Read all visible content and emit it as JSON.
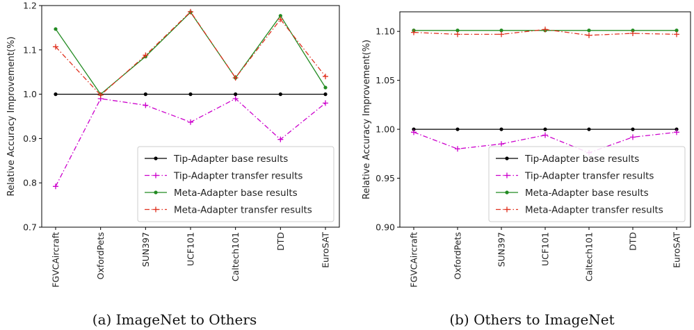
{
  "chart_data": [
    {
      "type": "line",
      "caption": "(a)  ImageNet to Others",
      "ylabel": "Relative Accuracy Improvement(%)",
      "categories": [
        "FGVCAircraft",
        "OxfordPets",
        "SUN397",
        "UCF101",
        "Caltech101",
        "DTD",
        "EuroSAT"
      ],
      "ylim": [
        0.7,
        1.2
      ],
      "yticks": [
        "0.7",
        "0.8",
        "0.9",
        "1.0",
        "1.1",
        "1.2"
      ],
      "ytick_values": [
        0.7,
        0.8,
        0.9,
        1.0,
        1.1,
        1.2
      ],
      "legend_position": "lower-right",
      "series": [
        {
          "name": "Tip-Adapter base results",
          "color": "#000000",
          "marker": "dot",
          "dash": "solid",
          "values": [
            1.0,
            1.0,
            1.0,
            1.0,
            1.0,
            1.0,
            1.0
          ]
        },
        {
          "name": "Tip-Adapter transfer results",
          "color": "#cc00cc",
          "marker": "plus",
          "dash": "dashdot",
          "values": [
            0.792,
            0.99,
            0.975,
            0.937,
            0.99,
            0.898,
            0.98
          ]
        },
        {
          "name": "Meta-Adapter base results",
          "color": "#228b22",
          "marker": "dot",
          "dash": "solid",
          "values": [
            1.147,
            1.0,
            1.085,
            1.185,
            1.037,
            1.177,
            1.015
          ]
        },
        {
          "name": "Meta-Adapter transfer results",
          "color": "#e0301e",
          "marker": "plus",
          "dash": "dashdot",
          "values": [
            1.107,
            0.998,
            1.088,
            1.186,
            1.037,
            1.169,
            1.04
          ]
        }
      ]
    },
    {
      "type": "line",
      "caption": "(b)  Others to ImageNet",
      "ylabel": "Relative Accuracy Improvement(%)",
      "categories": [
        "FGVCAircraft",
        "OxfordPets",
        "SUN397",
        "UCF101",
        "Caltech101",
        "DTD",
        "EuroSAT"
      ],
      "ylim": [
        0.9,
        1.12
      ],
      "yticks": [
        "0.90",
        "0.95",
        "1.00",
        "1.05",
        "1.10"
      ],
      "ytick_values": [
        0.9,
        0.95,
        1.0,
        1.05,
        1.1
      ],
      "legend_position": "lower-right",
      "series": [
        {
          "name": "Tip-Adapter base results",
          "color": "#000000",
          "marker": "dot",
          "dash": "solid",
          "values": [
            1.0,
            1.0,
            1.0,
            1.0,
            1.0,
            1.0,
            1.0
          ]
        },
        {
          "name": "Tip-Adapter transfer results",
          "color": "#cc00cc",
          "marker": "plus",
          "dash": "dashdot",
          "values": [
            0.997,
            0.98,
            0.985,
            0.994,
            0.976,
            0.992,
            0.997
          ]
        },
        {
          "name": "Meta-Adapter base results",
          "color": "#228b22",
          "marker": "dot",
          "dash": "solid",
          "values": [
            1.101,
            1.101,
            1.101,
            1.101,
            1.101,
            1.101,
            1.101
          ]
        },
        {
          "name": "Meta-Adapter transfer results",
          "color": "#e0301e",
          "marker": "plus",
          "dash": "dashdot",
          "values": [
            1.099,
            1.097,
            1.097,
            1.102,
            1.096,
            1.098,
            1.097
          ]
        }
      ]
    }
  ]
}
